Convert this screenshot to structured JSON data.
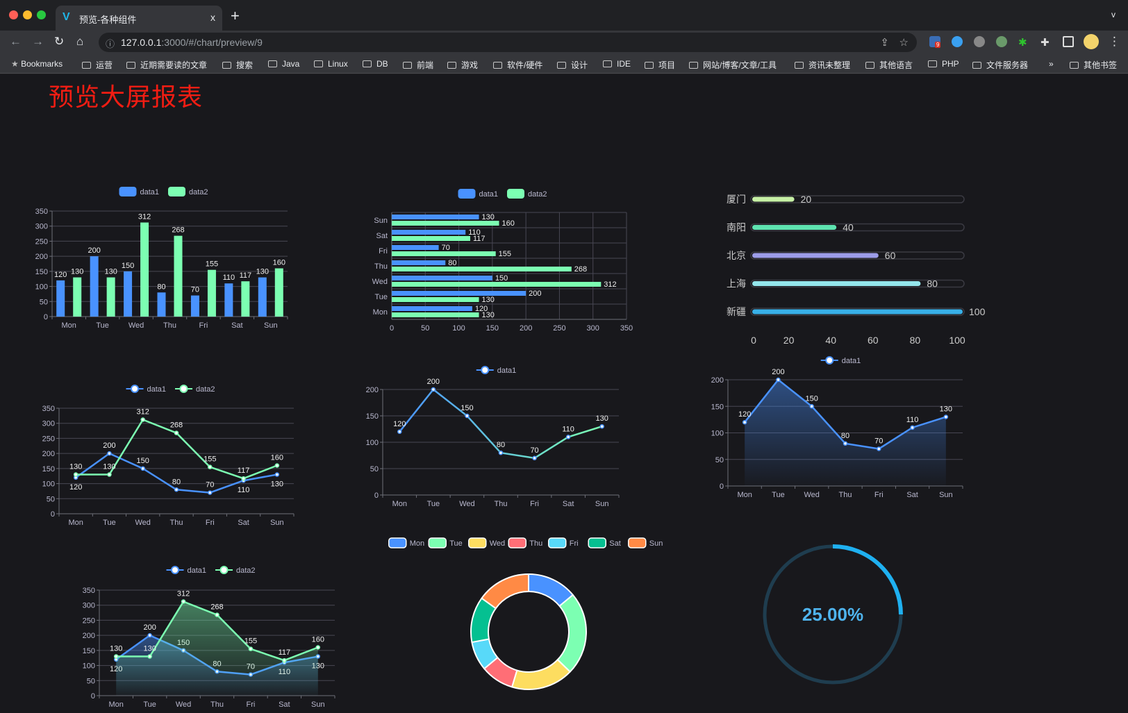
{
  "browser": {
    "tab_title": "预览-各种组件",
    "tab_close": "x",
    "new_tab": "+",
    "tab_menu": "v",
    "url_host": "127.0.0.1",
    "url_rest": ":3000/#/chart/preview/9",
    "extension_badge": "9",
    "bookmarks": [
      "Bookmarks",
      "运营",
      "近期需要读的文章",
      "搜索",
      "Java",
      "Linux",
      "DB",
      "前端",
      "游戏",
      "软件/硬件",
      "设计",
      "IDE",
      "项目",
      "网站/博客/文章/工具",
      "资讯未整理",
      "其他语言",
      "PHP",
      "文件服务器"
    ],
    "bookmarks_overflow": "»",
    "other_bookmarks": "其他书签"
  },
  "page": {
    "title": "预览大屏报表"
  },
  "colors": {
    "data1": "#4992ff",
    "data2": "#7cffb2",
    "bg": "#18181c",
    "title": "#f21d13"
  },
  "chart_data": [
    {
      "id": "bar",
      "type": "bar",
      "legend": [
        "data1",
        "data2"
      ],
      "legend_position": "top",
      "categories": [
        "Mon",
        "Tue",
        "Wed",
        "Thu",
        "Fri",
        "Sat",
        "Sun"
      ],
      "series": [
        {
          "name": "data1",
          "values": [
            120,
            200,
            150,
            80,
            70,
            110,
            130
          ]
        },
        {
          "name": "data2",
          "values": [
            130,
            130,
            312,
            268,
            155,
            117,
            160
          ]
        }
      ],
      "ylim": [
        0,
        350
      ],
      "yticks": [
        0,
        50,
        100,
        150,
        200,
        250,
        300,
        350
      ],
      "grid": true
    },
    {
      "id": "hbar",
      "type": "bar",
      "orientation": "horizontal",
      "legend": [
        "data1",
        "data2"
      ],
      "legend_position": "top",
      "categories": [
        "Mon",
        "Tue",
        "Wed",
        "Thu",
        "Fri",
        "Sat",
        "Sun"
      ],
      "series": [
        {
          "name": "data1",
          "values": [
            120,
            200,
            150,
            80,
            70,
            110,
            130
          ]
        },
        {
          "name": "data2",
          "values": [
            130,
            130,
            312,
            268,
            155,
            117,
            160
          ]
        }
      ],
      "xlim": [
        0,
        350
      ],
      "xticks": [
        0,
        50,
        100,
        150,
        200,
        250,
        300,
        350
      ],
      "grid": true
    },
    {
      "id": "progress",
      "type": "bar",
      "orientation": "horizontal",
      "categories": [
        "厦门",
        "南阳",
        "北京",
        "上海",
        "新疆"
      ],
      "values": [
        20,
        40,
        60,
        80,
        100
      ],
      "colors": [
        "#c6f0a5",
        "#5ee3b0",
        "#9c9ce8",
        "#94e6ec",
        "#38b0e8"
      ],
      "xlim": [
        0,
        100
      ],
      "xticks": [
        0,
        20,
        40,
        60,
        80,
        100
      ]
    },
    {
      "id": "line2",
      "type": "line",
      "legend": [
        "data1",
        "data2"
      ],
      "legend_position": "top",
      "categories": [
        "Mon",
        "Tue",
        "Wed",
        "Thu",
        "Fri",
        "Sat",
        "Sun"
      ],
      "series": [
        {
          "name": "data1",
          "values": [
            120,
            200,
            150,
            80,
            70,
            110,
            130
          ]
        },
        {
          "name": "data2",
          "values": [
            130,
            130,
            312,
            268,
            155,
            117,
            160
          ]
        }
      ],
      "ylim": [
        0,
        350
      ],
      "yticks": [
        0,
        50,
        100,
        150,
        200,
        250,
        300,
        350
      ],
      "grid": true
    },
    {
      "id": "line1",
      "type": "line",
      "legend": [
        "data1"
      ],
      "legend_position": "top",
      "categories": [
        "Mon",
        "Tue",
        "Wed",
        "Thu",
        "Fri",
        "Sat",
        "Sun"
      ],
      "series": [
        {
          "name": "data1",
          "values": [
            120,
            200,
            150,
            80,
            70,
            110,
            130
          ]
        }
      ],
      "ylim": [
        0,
        200
      ],
      "yticks": [
        0,
        50,
        100,
        150,
        200
      ],
      "grid": true
    },
    {
      "id": "area1",
      "type": "area",
      "legend": [
        "data1"
      ],
      "legend_position": "top",
      "categories": [
        "Mon",
        "Tue",
        "Wed",
        "Thu",
        "Fri",
        "Sat",
        "Sun"
      ],
      "series": [
        {
          "name": "data1",
          "values": [
            120,
            200,
            150,
            80,
            70,
            110,
            130
          ]
        }
      ],
      "ylim": [
        0,
        200
      ],
      "yticks": [
        0,
        50,
        100,
        150,
        200
      ],
      "grid": true
    },
    {
      "id": "area2",
      "type": "area",
      "legend": [
        "data1",
        "data2"
      ],
      "legend_position": "top",
      "categories": [
        "Mon",
        "Tue",
        "Wed",
        "Thu",
        "Fri",
        "Sat",
        "Sun"
      ],
      "series": [
        {
          "name": "data1",
          "values": [
            120,
            200,
            150,
            80,
            70,
            110,
            130
          ]
        },
        {
          "name": "data2",
          "values": [
            130,
            130,
            312,
            268,
            155,
            117,
            160
          ]
        }
      ],
      "ylim": [
        0,
        350
      ],
      "yticks": [
        0,
        50,
        100,
        150,
        200,
        250,
        300,
        350
      ],
      "grid": true
    },
    {
      "id": "donut",
      "type": "pie",
      "legend": [
        "Mon",
        "Tue",
        "Wed",
        "Thu",
        "Fri",
        "Sat",
        "Sun"
      ],
      "legend_position": "top",
      "values": [
        120,
        200,
        150,
        80,
        70,
        110,
        130
      ],
      "colors": [
        "#4992ff",
        "#7cffb2",
        "#fddd60",
        "#ff6e76",
        "#58d9f9",
        "#05c091",
        "#ff8a45"
      ]
    },
    {
      "id": "gauge",
      "type": "gauge",
      "value": 0.25,
      "label": "25.00%",
      "color": "#1fb0f0"
    }
  ]
}
